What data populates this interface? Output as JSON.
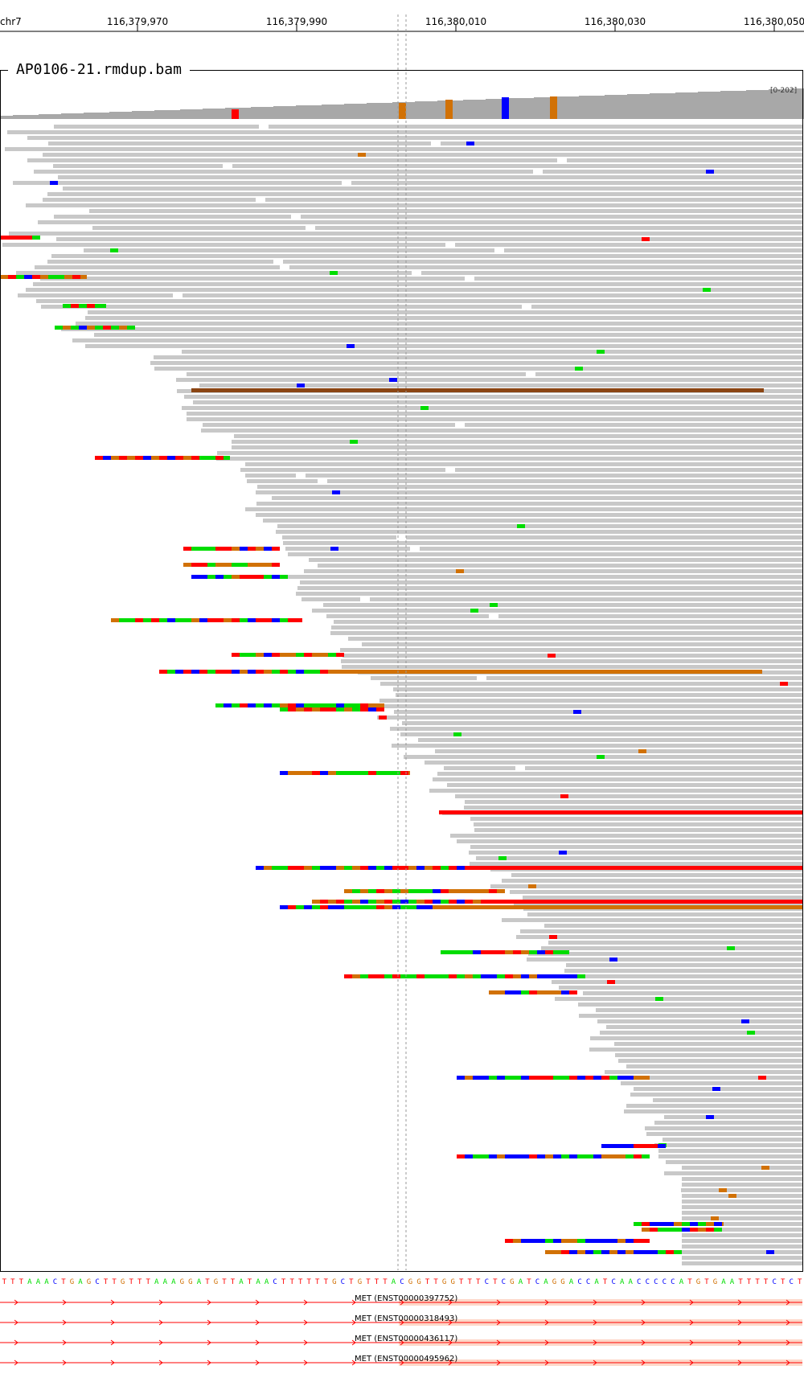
{
  "ruler": {
    "chromosome": "chr7",
    "tick_labels": [
      "116,379,970",
      "116,379,990",
      "116,380,010",
      "116,380,030",
      "116,380,050"
    ]
  },
  "track": {
    "title": "AP0106-21.rmdup.bam",
    "scale": "[0-202]"
  },
  "sequence": "TTTAAACTGAGCTTGTTTAAAGGATGTTATAACTTTTTTGCTGTTTACGGTTGGTTTCTCGATCAGGACCATCAACCCCCATGTGAATTTTCTCT",
  "transcripts": [
    {
      "label": "MET (ENST00000397752)"
    },
    {
      "label": "MET (ENST00000318493)"
    },
    {
      "label": "MET (ENST00000436117)"
    },
    {
      "label": "MET (ENST00000495962)"
    }
  ],
  "colors": {
    "read_gray": "#c8c8c8",
    "coverage_gray": "#a8a8a8",
    "base_A": "#00dd00",
    "base_C": "#0000ff",
    "base_G": "#d17105",
    "base_T": "#ff0000",
    "deletion": "#8b4513",
    "exon_highlight": "#fdd7c8",
    "center_line": "#999999"
  }
}
